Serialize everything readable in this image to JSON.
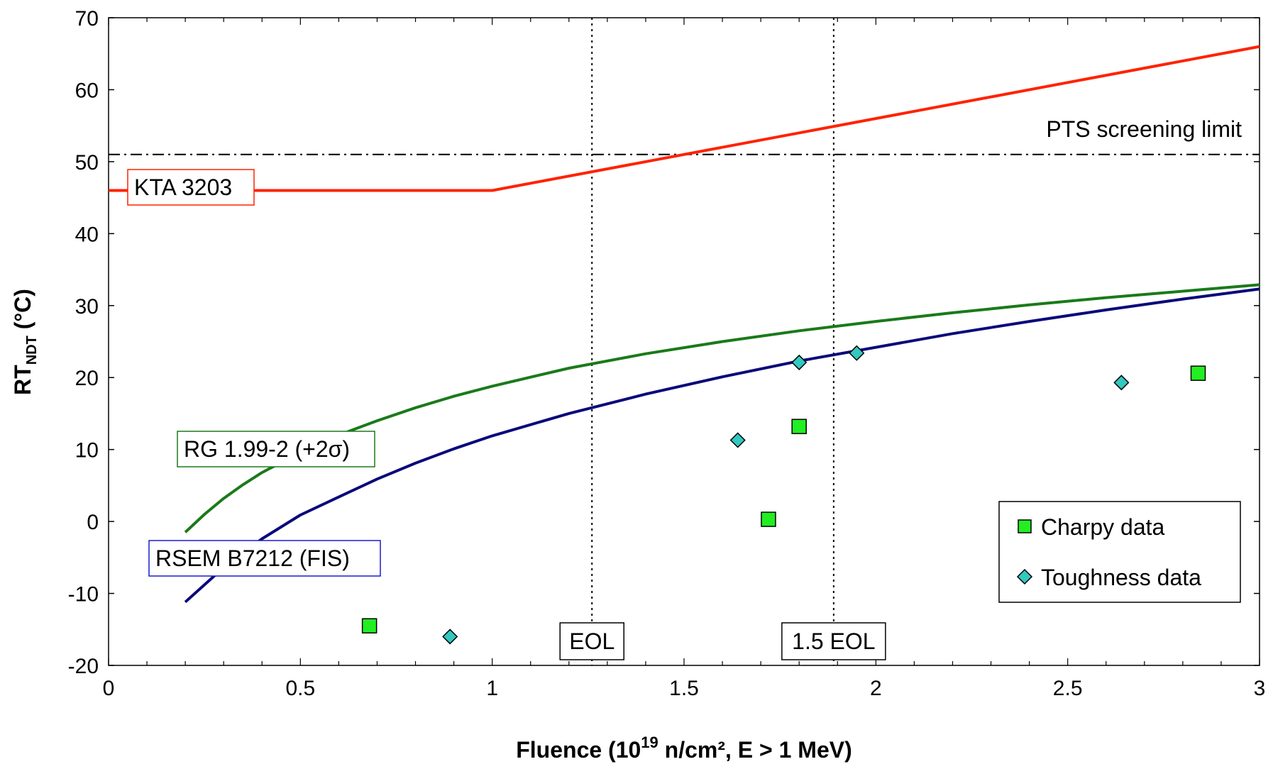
{
  "chart_data": {
    "type": "line",
    "title": "",
    "xlabel": {
      "main": "Fluence (10",
      "sup": "19",
      "rest": " n/cm², E > 1 MeV)"
    },
    "ylabel": {
      "main": "RT",
      "sub": "NDT",
      "rest": " (°C)"
    },
    "xlim": [
      0,
      3
    ],
    "ylim": [
      -20,
      70
    ],
    "xticks": [
      0,
      0.5,
      1,
      1.5,
      2,
      2.5,
      3
    ],
    "xtick_labels": [
      "0",
      "0.5",
      "1",
      "1.5",
      "2",
      "2.5",
      "3"
    ],
    "yticks": [
      -20,
      -10,
      0,
      10,
      20,
      30,
      40,
      50,
      60,
      70
    ],
    "ytick_labels": [
      "-20",
      "-10",
      "0",
      "10",
      "20",
      "30",
      "40",
      "50",
      "60",
      "70"
    ],
    "grid": false,
    "series": [
      {
        "name": "KTA 3203",
        "color": "#ff2200",
        "x": [
          0,
          1,
          3
        ],
        "y": [
          46,
          46,
          66
        ]
      },
      {
        "name": "RG 1.99-2 (+2σ)",
        "color": "#1a7a1a",
        "x": [
          0.2,
          0.25,
          0.3,
          0.35,
          0.4,
          0.5,
          0.6,
          0.7,
          0.8,
          0.9,
          1.0,
          1.2,
          1.4,
          1.6,
          1.8,
          2.0,
          2.2,
          2.4,
          2.6,
          2.8,
          3.0
        ],
        "y": [
          -1.5,
          1.0,
          3.2,
          5.1,
          6.8,
          9.6,
          12.0,
          14.0,
          15.8,
          17.4,
          18.8,
          21.3,
          23.3,
          25.0,
          26.5,
          27.8,
          29.0,
          30.1,
          31.1,
          32.0,
          32.9
        ]
      },
      {
        "name": "RSEM B7212 (FIS)",
        "color": "#0a0a7a",
        "x": [
          0.2,
          0.3,
          0.4,
          0.5,
          0.6,
          0.7,
          0.8,
          0.9,
          1.0,
          1.2,
          1.4,
          1.6,
          1.8,
          2.0,
          2.2,
          2.4,
          2.6,
          2.8,
          3.0
        ],
        "y": [
          -11.2,
          -6.4,
          -2.4,
          0.9,
          3.4,
          5.9,
          8.1,
          10.1,
          11.9,
          15.0,
          17.7,
          20.1,
          22.3,
          24.2,
          26.1,
          27.8,
          29.4,
          30.9,
          32.3
        ]
      }
    ],
    "scatter_series": [
      {
        "name": "Charpy data",
        "marker": "square",
        "color": "#22ee22",
        "points": [
          [
            0.68,
            -14.5
          ],
          [
            1.72,
            0.3
          ],
          [
            1.8,
            13.2
          ],
          [
            2.84,
            20.6
          ]
        ]
      },
      {
        "name": "Toughness data",
        "marker": "diamond",
        "color": "#33c8c0",
        "points": [
          [
            0.89,
            -16.0
          ],
          [
            1.64,
            11.3
          ],
          [
            1.8,
            22.1
          ],
          [
            1.95,
            23.4
          ],
          [
            2.64,
            19.3
          ]
        ]
      }
    ],
    "vlines": [
      {
        "x": 1.26,
        "label": "EOL"
      },
      {
        "x": 1.89,
        "label": "1.5 EOL"
      }
    ],
    "hlines": [
      {
        "y": 51,
        "label": "PTS screening limit"
      }
    ],
    "curve_labels": [
      {
        "text": "KTA 3203",
        "color": "#ff2200"
      },
      {
        "text": "RG 1.99-2 (+2σ)",
        "color": "#1a7a1a"
      },
      {
        "text": "RSEM B7212 (FIS)",
        "color": "#1a1ad0"
      }
    ],
    "legend": {
      "position": "bottom-right",
      "entries": [
        "Charpy data",
        "Toughness data"
      ]
    }
  }
}
